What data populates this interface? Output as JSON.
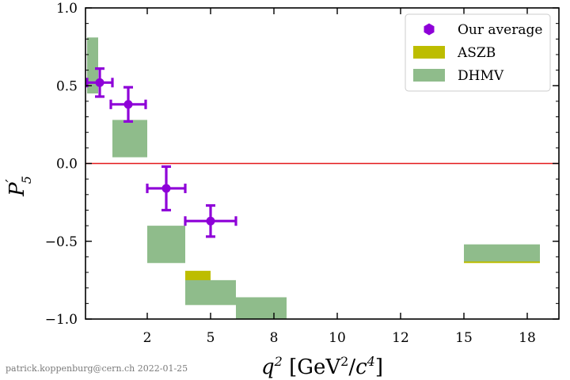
{
  "chart_data": {
    "type": "scatter",
    "xlabel": "q^2 [GeV^2/c^4]",
    "ylabel": "P'_5",
    "ylim": [
      -1.0,
      1.0
    ],
    "x_ticks": [
      {
        "x": 2.0,
        "label": "2"
      },
      {
        "x": 4.0,
        "label": "5"
      },
      {
        "x": 6.0,
        "label": "8"
      },
      {
        "x": 8.0,
        "label": "10"
      },
      {
        "x": 10.0,
        "label": "12"
      },
      {
        "x": 12.0,
        "label": "15"
      },
      {
        "x": 14.0,
        "label": "18"
      }
    ],
    "xlim": [
      0.05,
      15.0
    ],
    "y_ticks": [
      {
        "y": 1.0,
        "label": "1.0"
      },
      {
        "y": 0.5,
        "label": "0.5"
      },
      {
        "y": 0.0,
        "label": "0.0"
      },
      {
        "y": -0.5,
        "label": "−0.5"
      },
      {
        "y": -1.0,
        "label": "−1.0"
      }
    ],
    "reference_line": {
      "y": 0.0,
      "color": "#e41a1c"
    },
    "legend_position": "top-right",
    "series": [
      {
        "name": "Our average",
        "color": "#8e00d8",
        "kind": "points",
        "points": [
          {
            "x": 0.5,
            "xerr": 0.4,
            "y": 0.52,
            "yerr": 0.09
          },
          {
            "x": 1.4,
            "xerr": 0.55,
            "y": 0.38,
            "yerr": 0.11
          },
          {
            "x": 2.6,
            "xerr": 0.6,
            "y": -0.16,
            "yerr": 0.14
          },
          {
            "x": 4.0,
            "xerr": 0.8,
            "y": -0.37,
            "yerr": 0.1
          }
        ]
      },
      {
        "name": "ASZB",
        "color": "#bdbd00",
        "kind": "boxes",
        "boxes": [
          {
            "x0": 3.2,
            "x1": 4.0,
            "y0": -0.82,
            "y1": -0.69
          },
          {
            "x0": 12.0,
            "x1": 14.4,
            "y0": -0.64,
            "y1": -0.6
          }
        ]
      },
      {
        "name": "DHMV",
        "color": "#8fbc8b",
        "kind": "boxes",
        "boxes": [
          {
            "x0": 0.1,
            "x1": 0.45,
            "y0": 0.45,
            "y1": 0.81
          },
          {
            "x0": 0.9,
            "x1": 2.0,
            "y0": 0.04,
            "y1": 0.28
          },
          {
            "x0": 2.0,
            "x1": 3.2,
            "y0": -0.64,
            "y1": -0.4
          },
          {
            "x0": 3.2,
            "x1": 4.8,
            "y0": -0.91,
            "y1": -0.75
          },
          {
            "x0": 4.8,
            "x1": 6.4,
            "y0": -1.0,
            "y1": -0.86
          },
          {
            "x0": 12.0,
            "x1": 14.4,
            "y0": -0.63,
            "y1": -0.52
          }
        ]
      }
    ]
  },
  "credit": "patrick.koppenburg@cern.ch 2022-01-25"
}
